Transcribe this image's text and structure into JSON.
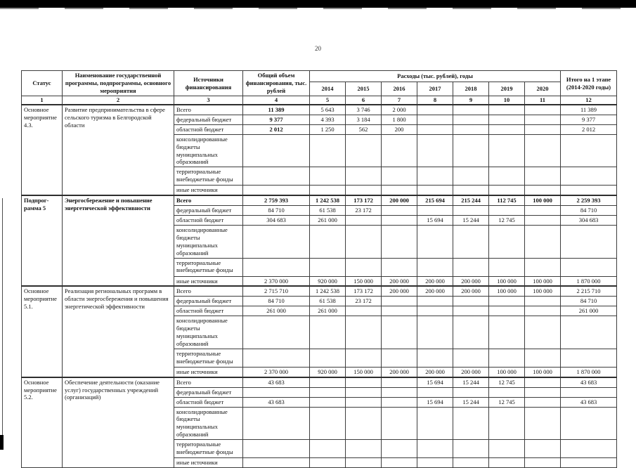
{
  "page": {
    "number": "20"
  },
  "table": {
    "header": {
      "status": "Статус",
      "program": "Наименование государственной программы, подпрограммы, основного мероприятия",
      "sources": "Источники финансирования",
      "total_volume": "Общий объем финансирования, тыс. рублей",
      "expenses_group": "Расходы (тыс. рублей), годы",
      "years": [
        "2014",
        "2015",
        "2016",
        "2017",
        "2018",
        "2019",
        "2020"
      ],
      "stage_total": "Итого на 1 этапе (2014-2020 годы)",
      "column_numbers": [
        "1",
        "2",
        "3",
        "4",
        "5",
        "6",
        "7",
        "8",
        "9",
        "10",
        "11",
        "12"
      ]
    },
    "blocks": [
      {
        "status": "Основное мероприятие 4.3.",
        "program": "Развитие предпринимательства в сфере сельского туризма в Белгородской области",
        "bold_header": false,
        "rows": [
          {
            "label": "Всего",
            "lines": 1,
            "col4Bold": true,
            "values": [
              "11 389",
              "5 643",
              "3 746",
              "2 000",
              "",
              "",
              "",
              "",
              "11 389"
            ]
          },
          {
            "label": "федеральный бюджет",
            "lines": 1,
            "col4Bold": true,
            "values": [
              "9 377",
              "4 393",
              "3 184",
              "1 800",
              "",
              "",
              "",
              "",
              "9 377"
            ]
          },
          {
            "label": "областной бюджет",
            "lines": 1,
            "col4Bold": true,
            "values": [
              "2 012",
              "1 250",
              "562",
              "200",
              "",
              "",
              "",
              "",
              "2 012"
            ]
          },
          {
            "label": "консолидированные бюджеты муниципальных образований",
            "lines": 3,
            "values": [
              "",
              "",
              "",
              "",
              "",
              "",
              "",
              "",
              ""
            ]
          },
          {
            "label": "территориальные внебюджетные фонды",
            "lines": 2,
            "values": [
              "",
              "",
              "",
              "",
              "",
              "",
              "",
              "",
              ""
            ]
          },
          {
            "label": "иные источники",
            "lines": 1,
            "values": [
              "",
              "",
              "",
              "",
              "",
              "",
              "",
              "",
              ""
            ]
          }
        ]
      },
      {
        "status": "Подпрог-рамма 5",
        "program": "Энергосбережение и повышение энергетической эффективности",
        "bold_header": true,
        "rows": [
          {
            "label": "Всего",
            "lines": 1,
            "bold": true,
            "values": [
              "2 759 393",
              "1 242 538",
              "173 172",
              "200 000",
              "215 694",
              "215 244",
              "112 745",
              "100 000",
              "2 259 393"
            ]
          },
          {
            "label": "федеральный бюджет",
            "lines": 1,
            "values": [
              "84 710",
              "61 538",
              "23 172",
              "",
              "",
              "",
              "",
              "",
              "84 710"
            ]
          },
          {
            "label": "областной бюджет",
            "lines": 1,
            "values": [
              "304 683",
              "261 000",
              "",
              "",
              "15 694",
              "15 244",
              "12 745",
              "",
              "304 683"
            ]
          },
          {
            "label": "консолидированные бюджеты муниципальных образований",
            "lines": 3,
            "values": [
              "",
              "",
              "",
              "",
              "",
              "",
              "",
              "",
              ""
            ]
          },
          {
            "label": "территориальные внебюджетные фонды",
            "lines": 2,
            "values": [
              "",
              "",
              "",
              "",
              "",
              "",
              "",
              "",
              ""
            ]
          },
          {
            "label": "иные источники",
            "lines": 1,
            "values": [
              "2 370 000",
              "920 000",
              "150 000",
              "200 000",
              "200 000",
              "200 000",
              "100 000",
              "100 000",
              "1 870 000"
            ]
          }
        ]
      },
      {
        "status": "Основное мероприятие 5.1.",
        "program": "Реализация региональных программ в области энергосбережения и повышения энергетической эффективности",
        "bold_header": false,
        "rows": [
          {
            "label": "Всего",
            "lines": 1,
            "values": [
              "2 715 710",
              "1 242 538",
              "173 172",
              "200 000",
              "200 000",
              "200 000",
              "100 000",
              "100 000",
              "2 215 710"
            ]
          },
          {
            "label": "федеральный бюджет",
            "lines": 1,
            "values": [
              "84 710",
              "61 538",
              "23 172",
              "",
              "",
              "",
              "",
              "",
              "84 710"
            ]
          },
          {
            "label": "областной бюджет",
            "lines": 1,
            "values": [
              "261 000",
              "261 000",
              "",
              "",
              "",
              "",
              "",
              "",
              "261 000"
            ]
          },
          {
            "label": "консолидированные бюджеты муниципальных образований",
            "lines": 3,
            "values": [
              "",
              "",
              "",
              "",
              "",
              "",
              "",
              "",
              ""
            ]
          },
          {
            "label": "территориальные внебюджетные фонды",
            "lines": 2,
            "values": [
              "",
              "",
              "",
              "",
              "",
              "",
              "",
              "",
              ""
            ]
          },
          {
            "label": "иные источники",
            "lines": 1,
            "values": [
              "2 370 000",
              "920 000",
              "150 000",
              "200 000",
              "200 000",
              "200 000",
              "100 000",
              "100 000",
              "1 870 000"
            ]
          }
        ]
      },
      {
        "status": "Основное мероприятие 5.2.",
        "program": "Обеспечение деятельности (оказание услуг) государственных учреждений (организаций)",
        "bold_header": false,
        "rows": [
          {
            "label": "Всего",
            "lines": 1,
            "values": [
              "43 683",
              "",
              "",
              "",
              "15 694",
              "15 244",
              "12 745",
              "",
              "43 683"
            ]
          },
          {
            "label": "федеральный бюджет",
            "lines": 1,
            "values": [
              "",
              "",
              "",
              "",
              "",
              "",
              "",
              "",
              ""
            ]
          },
          {
            "label": "областной бюджет",
            "lines": 1,
            "values": [
              "43 683",
              "",
              "",
              "",
              "15 694",
              "15 244",
              "12 745",
              "",
              "43 683"
            ]
          },
          {
            "label": "консолидированные бюджеты муниципальных образований",
            "lines": 3,
            "values": [
              "",
              "",
              "",
              "",
              "",
              "",
              "",
              "",
              ""
            ]
          },
          {
            "label": "территориальные внебюджетные фонды",
            "lines": 2,
            "values": [
              "",
              "",
              "",
              "",
              "",
              "",
              "",
              "",
              ""
            ]
          },
          {
            "label": "иные источники",
            "lines": 1,
            "values": [
              "",
              "",
              "",
              "",
              "",
              "",
              "",
              "",
              ""
            ]
          }
        ]
      }
    ]
  }
}
